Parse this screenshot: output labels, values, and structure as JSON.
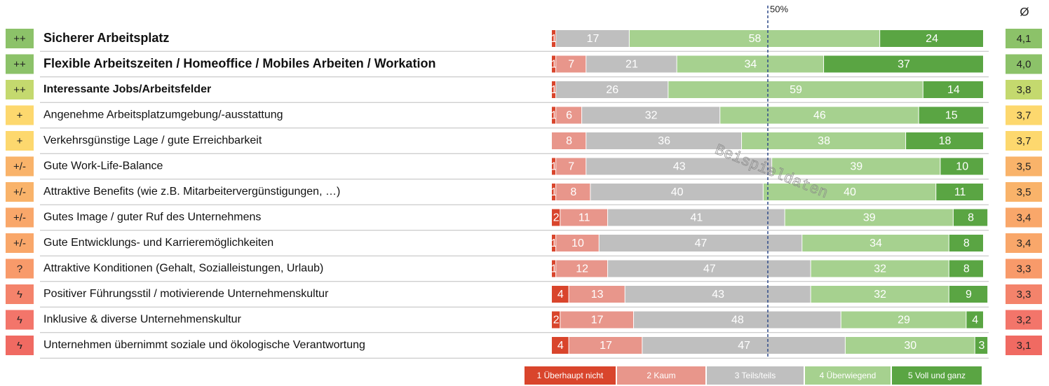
{
  "chart_data": {
    "type": "bar",
    "orientation": "horizontal",
    "stacked": true,
    "categories": [
      "Sicherer Arbeitsplatz",
      "Flexible Arbeitszeiten / Homeoffice / Mobiles Arbeiten / Workation",
      "Interessante Jobs/Arbeitsfelder",
      "Angenehme Arbeitsplatzumgebung/-ausstattung",
      "Verkehrsgünstige Lage / gute Erreichbarkeit",
      "Gute Work-Life-Balance",
      "Attraktive Benefits (wie z.B. Mitarbeitervergünstigungen, …)",
      "Gutes Image / guter Ruf des Unternehmens",
      "Gute Entwicklungs- und Karrieremöglichkeiten",
      "Attraktive Konditionen (Gehalt, Sozialleistungen, Urlaub)",
      "Positiver Führungsstil / motivierende Unternehmenskultur",
      "Inklusive & diverse Unternehmenskultur",
      "Unternehmen übernimmt soziale und ökologische Verantwortung"
    ],
    "series": [
      {
        "name": "1 Überhaupt nicht",
        "color": "#d9452c",
        "values": [
          1,
          1,
          1,
          1,
          0,
          1,
          1,
          2,
          1,
          1,
          4,
          2,
          4
        ]
      },
      {
        "name": "2 Kaum",
        "color": "#e8968b",
        "values": [
          0,
          7,
          0,
          6,
          8,
          7,
          8,
          11,
          10,
          12,
          13,
          17,
          17
        ]
      },
      {
        "name": "3 Teils/teils",
        "color": "#bfbfbf",
        "values": [
          17,
          21,
          26,
          32,
          36,
          43,
          40,
          41,
          47,
          47,
          43,
          48,
          47
        ]
      },
      {
        "name": "4 Überwiegend",
        "color": "#a6d18f",
        "values": [
          58,
          34,
          59,
          46,
          38,
          39,
          40,
          39,
          34,
          32,
          32,
          29,
          30
        ]
      },
      {
        "name": "5 Voll und ganz",
        "color": "#5aa543",
        "values": [
          24,
          37,
          14,
          15,
          18,
          10,
          11,
          8,
          8,
          8,
          9,
          4,
          3
        ]
      }
    ],
    "xlim": [
      0,
      100
    ],
    "reference_line": {
      "value": 50,
      "label": "50%"
    },
    "ratings": [
      "++",
      "++",
      "++",
      "+",
      "+",
      "+/-",
      "+/-",
      "+/-",
      "+/-",
      "?",
      "ϟ",
      "ϟ",
      "ϟ"
    ],
    "average_header": "Ø",
    "averages": [
      {
        "value": 4.1,
        "label": "4,1"
      },
      {
        "value": 4.0,
        "label": "4,0"
      },
      {
        "value": 3.8,
        "label": "3,8"
      },
      {
        "value": 3.7,
        "label": "3,7"
      },
      {
        "value": 3.7,
        "label": "3,7"
      },
      {
        "value": 3.5,
        "label": "3,5"
      },
      {
        "value": 3.5,
        "label": "3,5"
      },
      {
        "value": 3.4,
        "label": "3,4"
      },
      {
        "value": 3.4,
        "label": "3,4"
      },
      {
        "value": 3.3,
        "label": "3,3"
      },
      {
        "value": 3.3,
        "label": "3,3"
      },
      {
        "value": 3.2,
        "label": "3,2"
      },
      {
        "value": 3.1,
        "label": "3,1"
      }
    ],
    "badge_colors": [
      "#8cc269",
      "#8cc269",
      "#c4d96e",
      "#fdd86e",
      "#fdd86e",
      "#f9b36a",
      "#f9b36a",
      "#f9a76a",
      "#f9a76a",
      "#f89a6a",
      "#f4836b",
      "#f3756a",
      "#f06a62"
    ],
    "watermark": "Beispieldaten"
  }
}
